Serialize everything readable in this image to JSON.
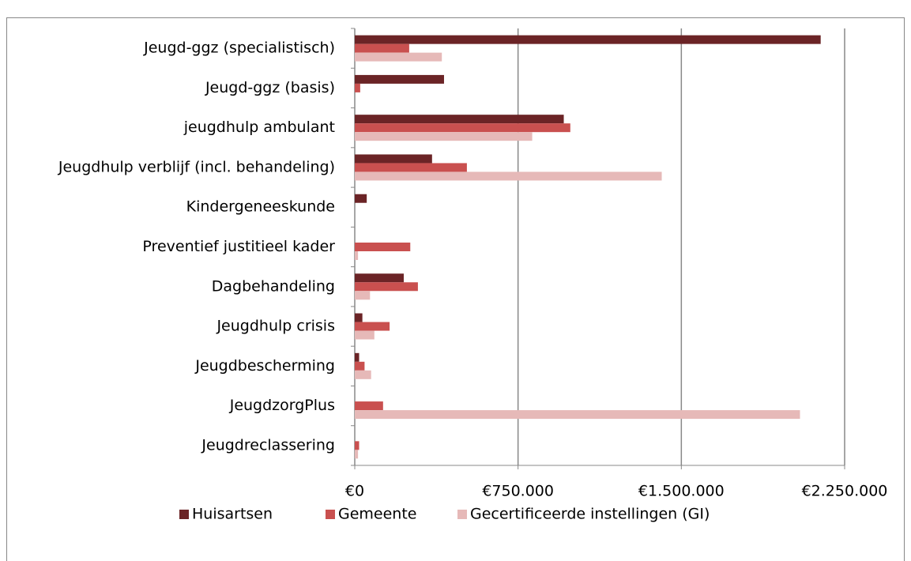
{
  "chart_data": {
    "type": "hbar",
    "categories": [
      "Jeugd-ggz (specialistisch)",
      "Jeugd-ggz (basis)",
      "jeugdhulp ambulant",
      "Jeugdhulp verblijf (incl. behandeling)",
      "Kindergeneeskunde",
      "Preventief justitieel kader",
      "Dagbehandeling",
      "Jeugdhulp crisis",
      "Jeugdbescherming",
      "JeugdzorgPlus",
      "Jeugdreclassering"
    ],
    "series": [
      {
        "name": "Huisartsen",
        "color": "#6b2426",
        "values": [
          2140000,
          410000,
          960000,
          355000,
          55000,
          0,
          225000,
          35000,
          20000,
          0,
          0
        ]
      },
      {
        "name": "Gemeente",
        "color": "#c9504f",
        "values": [
          250000,
          25000,
          990000,
          515000,
          0,
          255000,
          290000,
          160000,
          45000,
          130000,
          20000
        ]
      },
      {
        "name": "Gecertificeerde instellingen (GI)",
        "color": "#e6b9b8",
        "values": [
          400000,
          0,
          815000,
          1410000,
          0,
          15000,
          70000,
          90000,
          75000,
          2045000,
          15000
        ]
      }
    ],
    "xlim": [
      0,
      2250000
    ],
    "xticks": [
      {
        "value": 0,
        "label": "€0"
      },
      {
        "value": 750000,
        "label": "€750.000"
      },
      {
        "value": 1500000,
        "label": "€1.500.000"
      },
      {
        "value": 2250000,
        "label": "€2.250.000"
      }
    ],
    "grid": true,
    "legend": "bottom"
  }
}
